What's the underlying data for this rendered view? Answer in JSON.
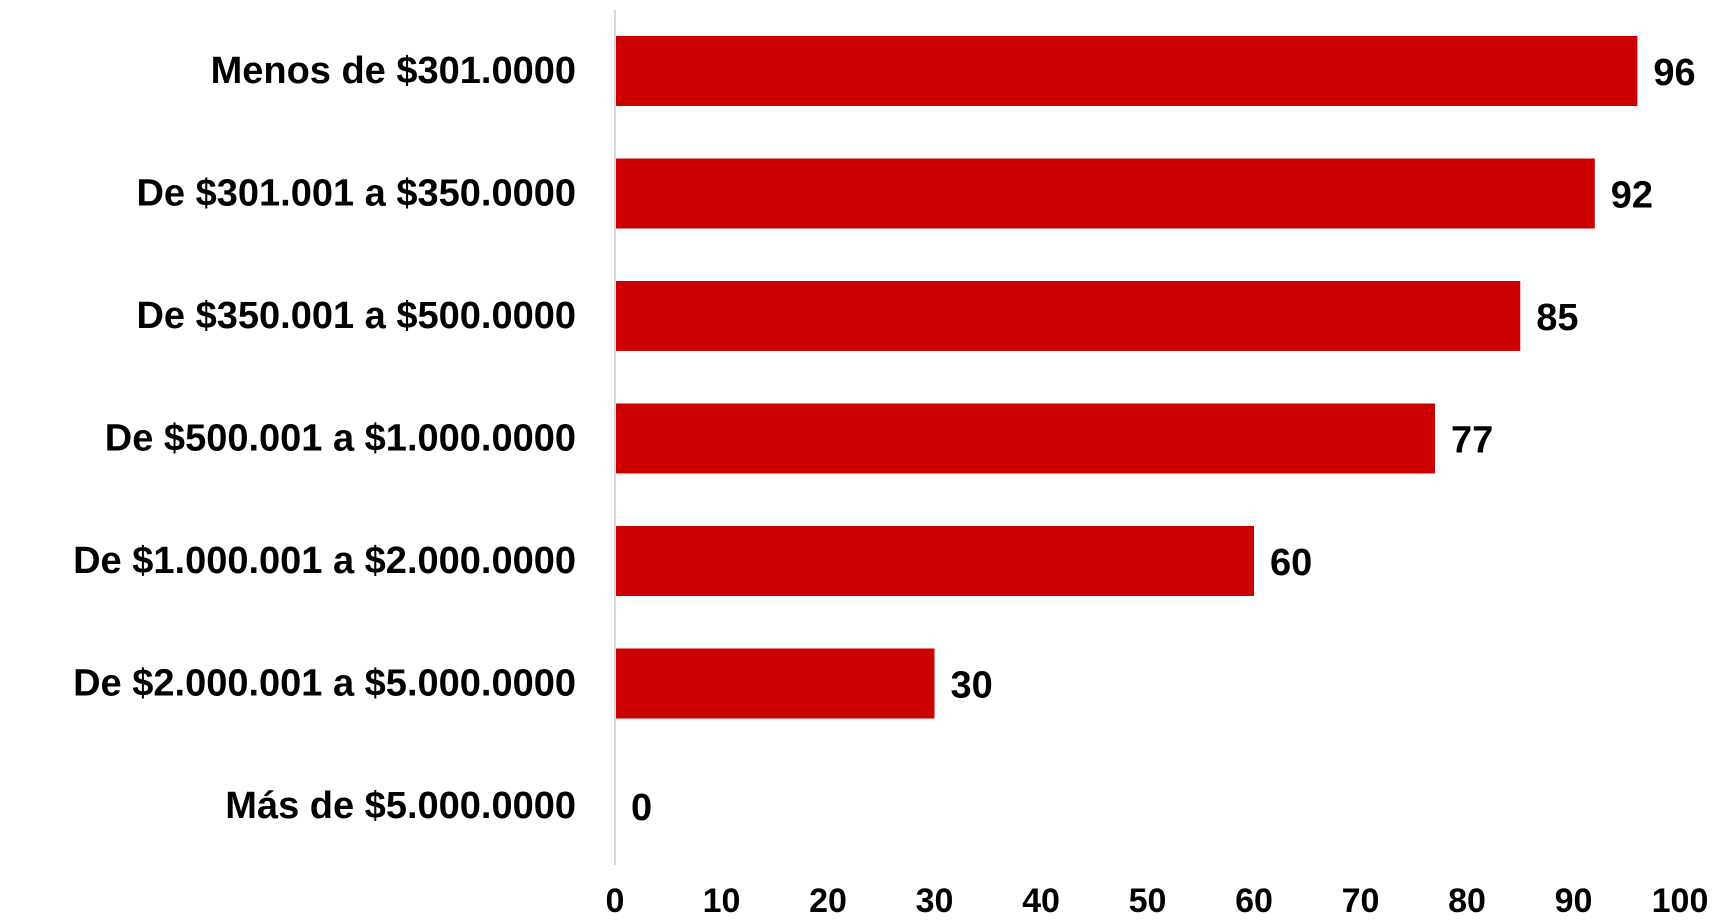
{
  "chart_data": {
    "type": "bar",
    "orientation": "horizontal",
    "categories": [
      "Menos de $301.0000",
      "De $301.001 a $350.0000",
      "De $350.001 a $500.0000",
      "De $500.001 a $1.000.0000",
      "De $1.000.001 a $2.000.0000",
      "De $2.000.001 a $5.000.0000",
      "Más de $5.000.0000"
    ],
    "values": [
      96,
      92,
      85,
      77,
      60,
      30,
      0
    ],
    "xlim": [
      0,
      100
    ],
    "xticks": [
      "0",
      "10",
      "20",
      "30",
      "40",
      "50",
      "60",
      "70",
      "80",
      "90",
      "100"
    ],
    "grid": false,
    "legend": "none",
    "bar_color": "#CC0000",
    "axis_color": "#D9D9D9"
  }
}
